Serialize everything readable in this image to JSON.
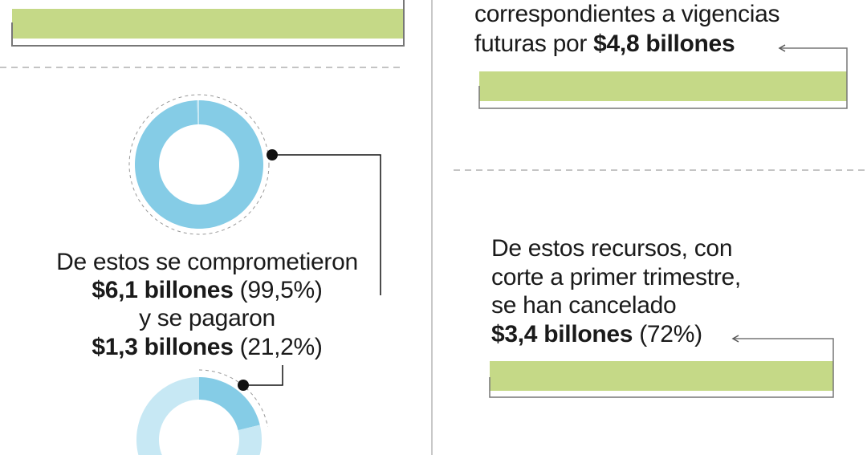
{
  "colors": {
    "bar_green": "#c5d987",
    "donut_blue": "#85cce6",
    "donut_light_blue": "#c7e8f4",
    "divider_gray": "#c8c8c8",
    "line_black": "#111111"
  },
  "left": {
    "committed": {
      "line1": "De estos se comprometieron",
      "amount": "$6,1 billones",
      "pct": "(99,5%)"
    },
    "paid": {
      "line1": "y se pagaron",
      "amount": "$1,3 billones",
      "pct": "(21,2%)"
    }
  },
  "right": {
    "top": {
      "line1": "correspondientes a vigencias",
      "line2_prefix": "futuras por",
      "amount": "$4,8 billones"
    },
    "bottom": {
      "line1": "De estos recursos, con",
      "line2": "corte a primer trimestre,",
      "line3": "se han cancelado",
      "amount": "$3,4 billones",
      "pct": "(72%)"
    }
  },
  "chart_data": [
    {
      "type": "pie",
      "variant": "donut",
      "values": [
        99.5,
        0.5
      ],
      "unit": "%",
      "label": "$6,1 billones (99,5%)"
    },
    {
      "type": "pie",
      "variant": "donut",
      "values": [
        21.2,
        78.8
      ],
      "unit": "%",
      "label": "$1,3 billones (21,2%)"
    }
  ]
}
